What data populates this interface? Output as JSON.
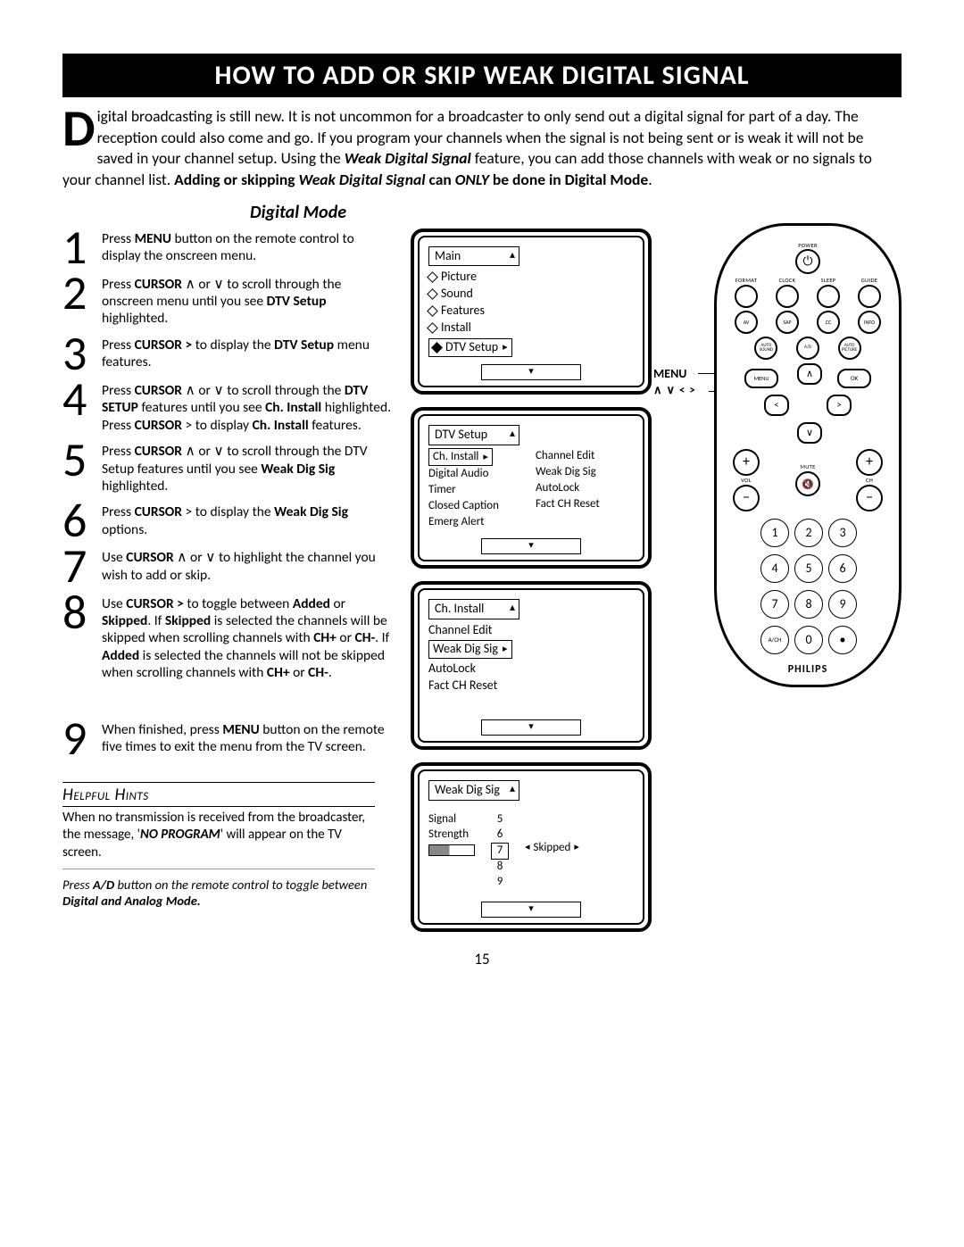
{
  "banner": "HOW TO ADD OR SKIP WEAK DIGITAL SIGNAL",
  "intro": {
    "dropcap": "D",
    "body_html": "igital broadcasting is still new.  It is not uncommon for a broadcaster to only send out a digital signal for part of a day.  The  reception could also come and go.  If you program your channels when the signal is not being sent or is weak it will not be saved in your channel setup.  Using the <b><i>Weak Digital Signal</i></b> feature, you can add those channels with weak or no signals to your channel list.   <b>Adding or skipping <i>Weak Digital Signal</i> can <i>ONLY</i> be done in Digital Mode</b>."
  },
  "digital_mode_heading": "Digital Mode",
  "steps": [
    {
      "n": "1",
      "html": "Press <b>MENU</b> button on the remote control to display the onscreen menu."
    },
    {
      "n": "2",
      "html": "Press <b>CURSOR</b> ∧ or ∨ to scroll through the onscreen menu until you see <b>DTV Setup</b> highlighted."
    },
    {
      "n": "3",
      "html": "Press <b>CURSOR ></b> to display the <b>DTV Setup</b> menu features."
    },
    {
      "n": "4",
      "html": "Press <b>CURSOR</b>  ∧ or ∨ to scroll through the <b>DTV SETUP</b> features until you see <b>Ch. Install</b> highlighted.  Press <b>CURSOR</b> > to display <b>Ch. Install</b> features."
    },
    {
      "n": "5",
      "html": "Press <b>CURSOR</b> ∧ or ∨ to scroll through the DTV Setup features until you see <b>Weak Dig Sig</b> highlighted."
    },
    {
      "n": "6",
      "html": "Press <b>CURSOR</b>  > to display the <b>Weak Dig Sig</b> options."
    },
    {
      "n": "7",
      "html": "Use  <b>CURSOR</b> ∧ or ∨ to highlight the channel you wish to add or skip."
    },
    {
      "n": "8",
      "html": "Use <b>CURSOR  ></b>  to toggle between <b>Added</b> or <b>Skipped</b>.  If <b>Skipped</b> is selected the channels will be skipped when scrolling channels with <b>CH+</b> or <b>CH-</b>.  If <b>Added</b> is selected the channels will not be skipped when scrolling channels with <b>CH+</b> or <b>CH-</b>."
    },
    {
      "n": "9",
      "html": "When finished, press <b>MENU</b> button on the remote five times to exit the menu from the TV screen."
    }
  ],
  "tv1": {
    "head": "Main",
    "items": [
      "Picture",
      "Sound",
      "Features",
      "Install"
    ],
    "selected": "DTV Setup"
  },
  "tv2": {
    "head": "DTV Setup",
    "left": [
      "Ch. Install",
      "Digital Audio",
      "Timer",
      "Closed Caption",
      "Emerg Alert"
    ],
    "right": [
      "Channel Edit",
      "Weak Dig Sig",
      "AutoLock",
      "Fact CH Reset"
    ],
    "sel_right_arrow": "▸"
  },
  "tv3": {
    "head": "Ch. Install",
    "items": [
      "Channel Edit"
    ],
    "selected": "Weak Dig Sig",
    "after": [
      "AutoLock",
      "Fact CH Reset"
    ]
  },
  "tv4": {
    "head": "Weak Dig Sig",
    "signal_label": "Signal\nStrength",
    "channels": [
      "5",
      "6",
      "7",
      "8",
      "9"
    ],
    "sel_channel": "7",
    "status": "Skipped"
  },
  "hints": {
    "title": "Helpful Hints",
    "body_html": "When no transmission is received from the broadcaster, the message, '<b><i>NO PROGRAM</i></b>' will appear on the TV screen.",
    "note_html": "Press <b>A/D</b> button on the remote control to toggle between <b>Digital and Analog Mode.</b>"
  },
  "pagenum": "15",
  "remote": {
    "power": "POWER",
    "row1": [
      "FORMAT",
      "CLOCK",
      "SLEEP",
      "GUIDE"
    ],
    "row2": [
      "AV",
      "SAP",
      "CC",
      "INFO"
    ],
    "row3": [
      "AUTO SOUND",
      "A/D",
      "AUTO PICTURE"
    ],
    "menu": "MENU",
    "ok": "OK",
    "mute": "MUTE",
    "vol": "VOL",
    "ch": "CH",
    "nums": [
      "1",
      "2",
      "3",
      "4",
      "5",
      "6",
      "7",
      "8",
      "9",
      "A/CH",
      "0",
      "•"
    ],
    "brand": "PHILIPS",
    "menu_label": "MENU",
    "cursor_label": "∧ ∨ < >"
  }
}
